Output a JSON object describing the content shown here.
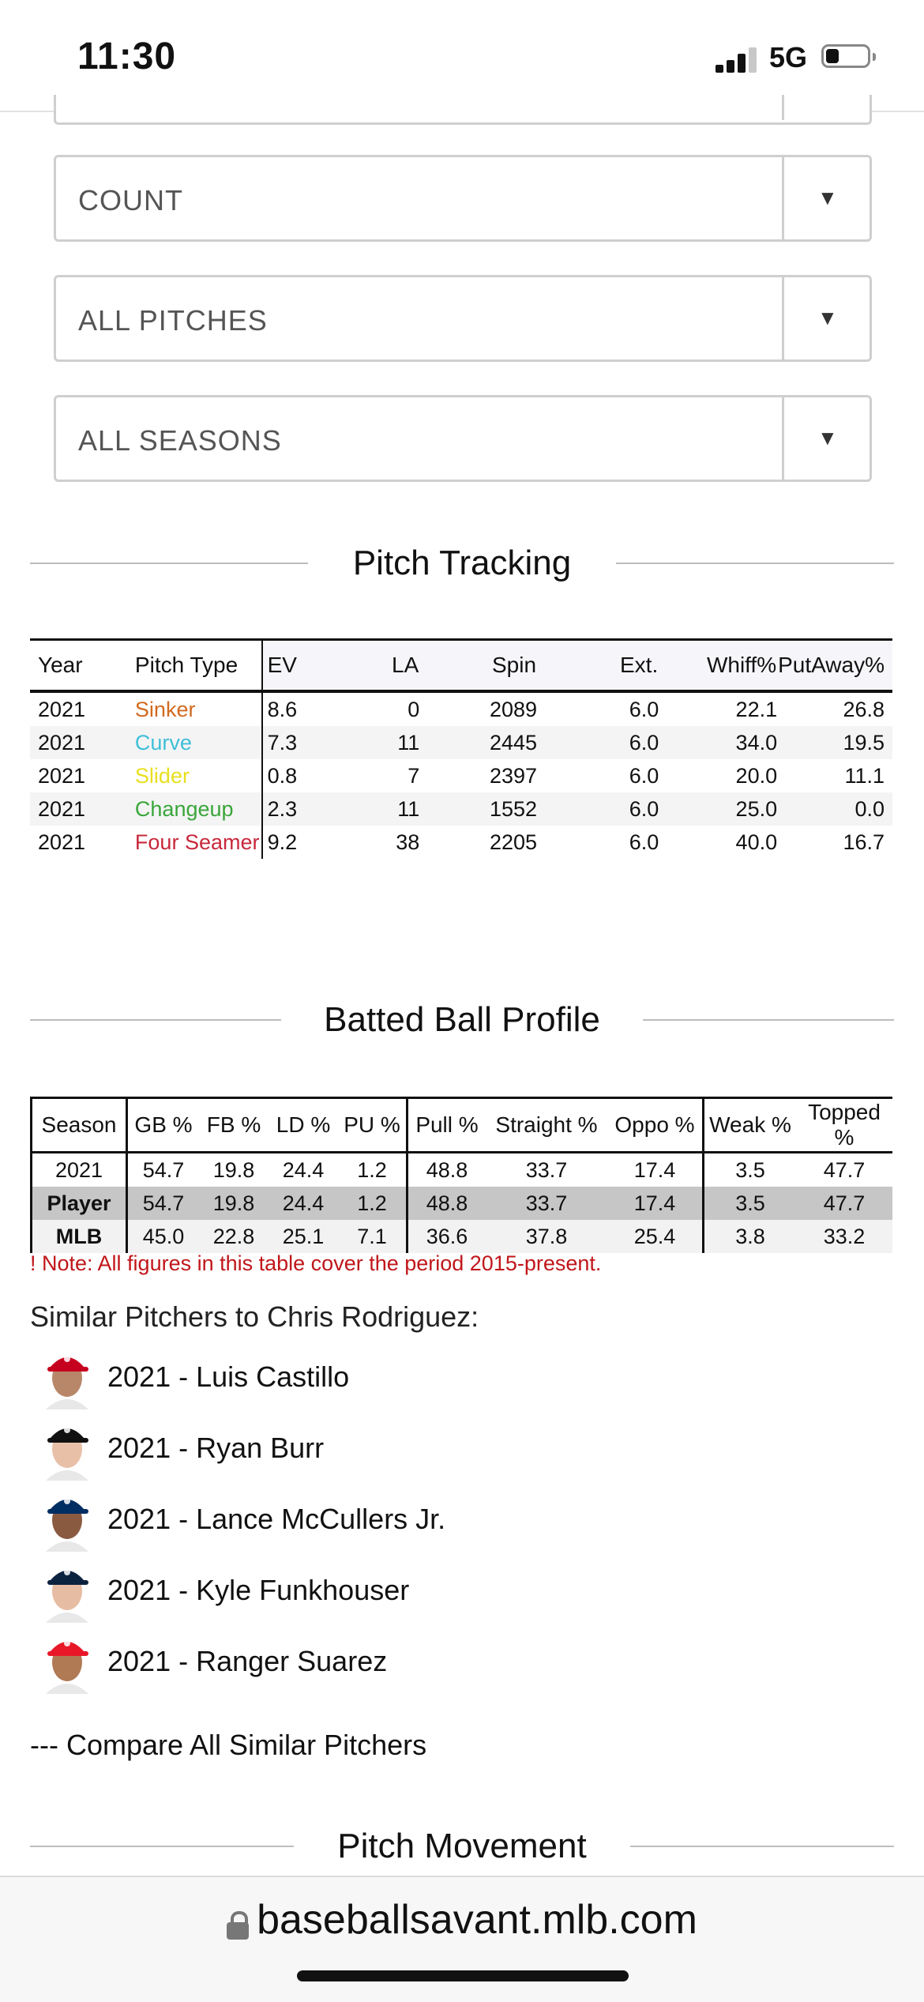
{
  "status_bar": {
    "time": "11:30",
    "network": "5G"
  },
  "filters": [
    {
      "value": "COUNT"
    },
    {
      "value": "ALL PITCHES"
    },
    {
      "value": "ALL SEASONS"
    }
  ],
  "pitch_tracking": {
    "title": "Pitch Tracking",
    "headers": [
      "Year",
      "Pitch Type",
      "EV",
      "LA",
      "Spin",
      "Ext.",
      "Whiff%",
      "PutAway%"
    ],
    "rows": [
      {
        "year": "2021",
        "pitch": "Sinker",
        "color": "#d2691e",
        "ev": "8.6",
        "la": "0",
        "spin": "2089",
        "ext": "6.0",
        "whiff": "22.1",
        "putaway": "26.8"
      },
      {
        "year": "2021",
        "pitch": "Curve",
        "color": "#3fbfd8",
        "ev": "7.3",
        "la": "11",
        "spin": "2445",
        "ext": "6.0",
        "whiff": "34.0",
        "putaway": "19.5"
      },
      {
        "year": "2021",
        "pitch": "Slider",
        "color": "#e8e020",
        "ev": "0.8",
        "la": "7",
        "spin": "2397",
        "ext": "6.0",
        "whiff": "20.0",
        "putaway": "11.1"
      },
      {
        "year": "2021",
        "pitch": "Changeup",
        "color": "#3aa63a",
        "ev": "2.3",
        "la": "11",
        "spin": "1552",
        "ext": "6.0",
        "whiff": "25.0",
        "putaway": "0.0"
      },
      {
        "year": "2021",
        "pitch": "Four Seamer",
        "color": "#c8283c",
        "ev": "9.2",
        "la": "38",
        "spin": "2205",
        "ext": "6.0",
        "whiff": "40.0",
        "putaway": "16.7"
      }
    ]
  },
  "batted_ball": {
    "title": "Batted Ball Profile",
    "headers": [
      "Season",
      "GB %",
      "FB %",
      "LD %",
      "PU %",
      "Pull %",
      "Straight %",
      "Oppo %",
      "Weak %",
      "Topped %"
    ],
    "rows": [
      {
        "label": "2021",
        "values": [
          "54.7",
          "19.8",
          "24.4",
          "1.2",
          "48.8",
          "33.7",
          "17.4",
          "3.5",
          "47.7"
        ]
      },
      {
        "label": "Player",
        "values": [
          "54.7",
          "19.8",
          "24.4",
          "1.2",
          "48.8",
          "33.7",
          "17.4",
          "3.5",
          "47.7"
        ]
      },
      {
        "label": "MLB",
        "values": [
          "45.0",
          "22.8",
          "25.1",
          "7.1",
          "36.6",
          "37.8",
          "25.4",
          "3.8",
          "33.2"
        ]
      }
    ],
    "note": "! Note: All figures in this table cover the period 2015-present."
  },
  "similar": {
    "title": "Similar Pitchers to Chris Rodriguez:",
    "pitchers": [
      {
        "name": "2021 - Luis Castillo",
        "cap": "#c6011f",
        "skin": "#b8876a"
      },
      {
        "name": "2021 - Ryan Burr",
        "cap": "#111111",
        "skin": "#e8c0a8"
      },
      {
        "name": "2021 - Lance McCullers Jr.",
        "cap": "#002d62",
        "skin": "#8a5a40"
      },
      {
        "name": "2021 - Kyle Funkhouser",
        "cap": "#0c2340",
        "skin": "#e6bca2"
      },
      {
        "name": "2021 - Ranger Suarez",
        "cap": "#e81828",
        "skin": "#b07a55"
      }
    ],
    "compare_link": "--- Compare All Similar Pitchers"
  },
  "pitch_movement": {
    "title": "Pitch Movement"
  },
  "url_bar": {
    "url": "baseballsavant.mlb.com"
  }
}
